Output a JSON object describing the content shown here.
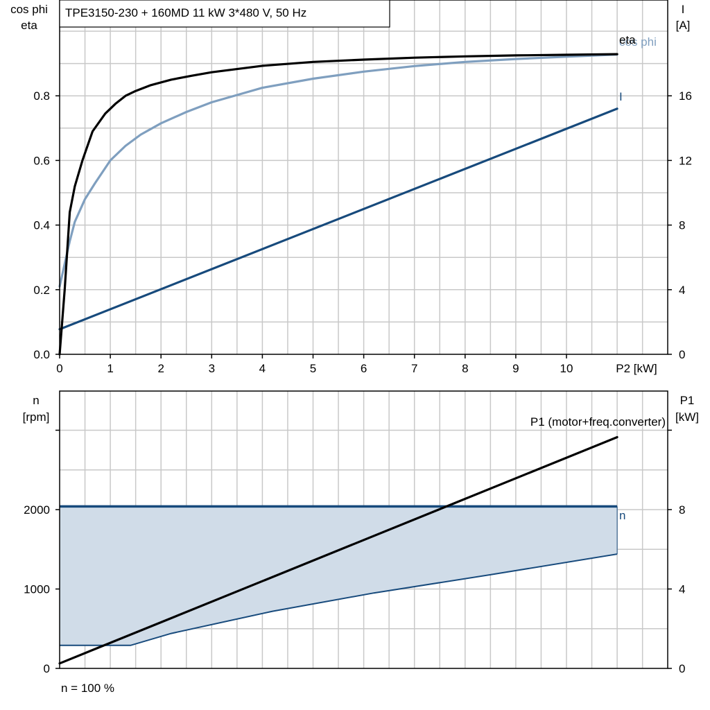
{
  "chart_data": [
    {
      "type": "line",
      "title": "TPE3150-230 + 160MD   11 kW   3*480 V, 50 Hz",
      "xlabel": "P2 [kW]",
      "ylabel_left": [
        "cos phi",
        "eta"
      ],
      "ylabel_right": [
        "I",
        "[A]"
      ],
      "xlim": [
        0,
        11
      ],
      "ylim_left": [
        0,
        1.0
      ],
      "ylim_right": [
        0,
        20
      ],
      "x_ticks": [
        "0",
        "1",
        "2",
        "3",
        "4",
        "5",
        "6",
        "7",
        "8",
        "9",
        "10"
      ],
      "y_ticks_left": [
        "0.0",
        "0.2",
        "0.4",
        "0.6",
        "0.8"
      ],
      "y_ticks_right": [
        "0",
        "4",
        "8",
        "12",
        "16"
      ],
      "grid": true,
      "colors": {
        "eta": "#000000",
        "cos_phi": "#7f9fbf",
        "I": "#174a7c"
      },
      "series": [
        {
          "name": "eta",
          "axis": "left",
          "x": [
            0,
            0.1,
            0.2,
            0.3,
            0.45,
            0.65,
            0.9,
            1.1,
            1.3,
            1.5,
            1.8,
            2.2,
            2.6,
            3,
            4,
            5,
            6,
            7,
            8,
            9,
            10,
            11
          ],
          "y": [
            0.0,
            0.2,
            0.44,
            0.52,
            0.6,
            0.69,
            0.745,
            0.775,
            0.8,
            0.815,
            0.833,
            0.85,
            0.862,
            0.873,
            0.893,
            0.905,
            0.912,
            0.918,
            0.922,
            0.925,
            0.927,
            0.929
          ]
        },
        {
          "name": "cos phi",
          "axis": "left",
          "x": [
            0,
            0.1,
            0.2,
            0.3,
            0.5,
            0.7,
            1.0,
            1.3,
            1.6,
            2.0,
            2.5,
            3,
            4,
            5,
            6,
            7,
            8,
            9,
            10,
            11
          ],
          "y": [
            0.21,
            0.28,
            0.35,
            0.41,
            0.48,
            0.53,
            0.6,
            0.645,
            0.68,
            0.715,
            0.75,
            0.78,
            0.825,
            0.853,
            0.875,
            0.892,
            0.905,
            0.914,
            0.921,
            0.928
          ]
        },
        {
          "name": "I",
          "axis": "right",
          "x": [
            0,
            11
          ],
          "y": [
            1.55,
            15.2
          ]
        }
      ]
    },
    {
      "type": "area",
      "xlabel": "",
      "ylabel_left": [
        "n",
        "[rpm]"
      ],
      "ylabel_right": [
        "P1",
        "[kW]"
      ],
      "xlim": [
        0,
        11
      ],
      "ylim_left": [
        0,
        3400
      ],
      "ylim_right": [
        0,
        13.6
      ],
      "y_ticks_left": [
        "0",
        "1000",
        "2000"
      ],
      "y_ticks_right": [
        "0",
        "4",
        "8"
      ],
      "grid": true,
      "colors": {
        "n_band_fill": "#d0dce8",
        "n_line": "#174a7c",
        "P1": "#000000"
      },
      "series": [
        {
          "name": "n",
          "axis": "left",
          "upper": {
            "x": [
              0,
              11
            ],
            "y": [
              2040,
              2040
            ]
          },
          "lower": {
            "x": [
              0,
              1.4,
              2.2,
              4.2,
              6.2,
              8.5,
              11
            ],
            "y": [
              290,
              290,
              440,
              720,
              950,
              1180,
              1440
            ]
          }
        },
        {
          "name": "P1 (motor+freq.converter)",
          "axis": "right",
          "x": [
            0,
            11
          ],
          "y": [
            0.25,
            11.65
          ]
        }
      ],
      "footnote": "n = 100 %"
    }
  ]
}
